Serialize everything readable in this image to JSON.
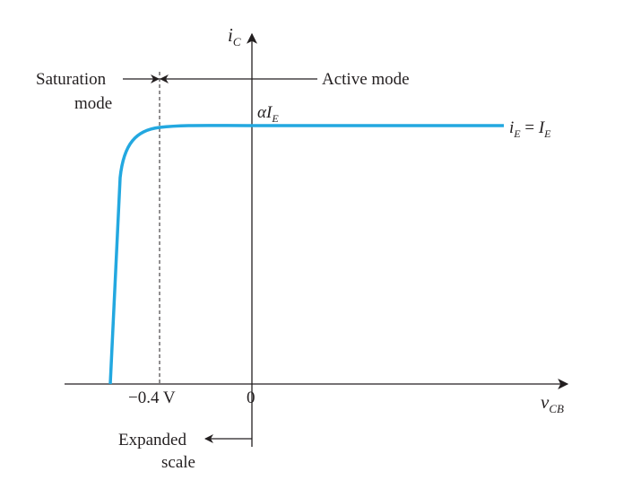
{
  "axes": {
    "y_label": {
      "main": "i",
      "sub": "C"
    },
    "x_label": {
      "main": "v",
      "sub": "CB"
    }
  },
  "regions": {
    "saturation_line1": "Saturation",
    "saturation_line2": "mode",
    "active": "Active mode"
  },
  "curve_labels": {
    "alpha_symbol": "α",
    "alpha_I": "I",
    "alpha_sub": "E",
    "iE_main": "i",
    "iE_sub": "E",
    "equals": " = ",
    "IE_main": "I",
    "IE_sub": "E"
  },
  "ticks": {
    "neg": "−0.4 V",
    "zero": "0"
  },
  "note": {
    "line1": "Expanded",
    "line2": "scale"
  },
  "colors": {
    "curve": "#23a8e0",
    "ink": "#231f20"
  }
}
